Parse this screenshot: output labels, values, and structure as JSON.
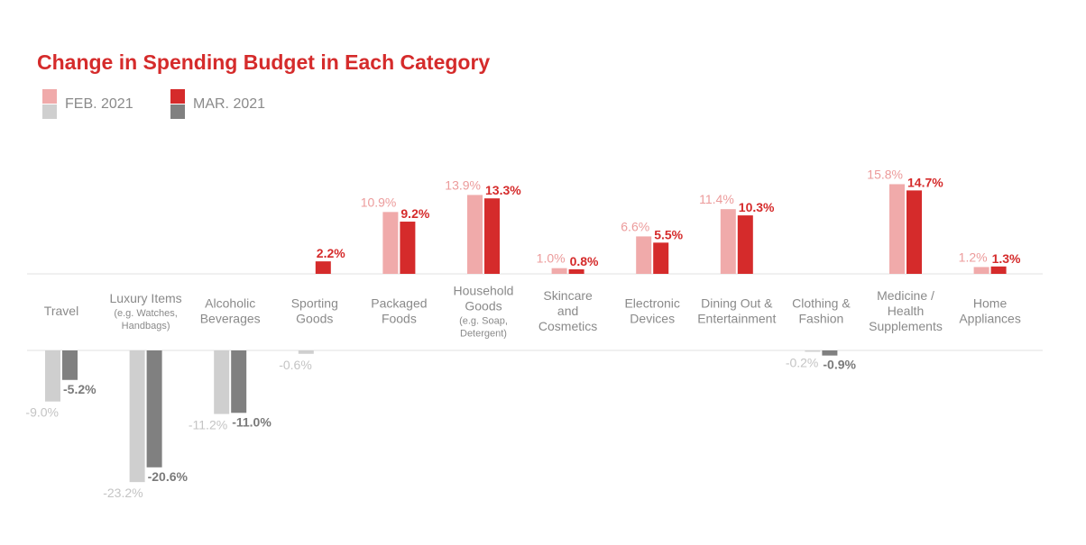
{
  "chart_data": {
    "type": "bar",
    "title": "Change in Spending Budget in Each Category",
    "categories": [
      {
        "lines": [
          "Travel"
        ],
        "sub": []
      },
      {
        "lines": [
          "Luxury Items"
        ],
        "sub": [
          "(e.g. Watches,",
          "Handbags)"
        ]
      },
      {
        "lines": [
          "Alcoholic",
          "Beverages"
        ],
        "sub": []
      },
      {
        "lines": [
          "Sporting",
          "Goods"
        ],
        "sub": []
      },
      {
        "lines": [
          "Packaged",
          "Foods"
        ],
        "sub": []
      },
      {
        "lines": [
          "Household",
          "Goods"
        ],
        "sub": [
          "(e.g. Soap,",
          "Detergent)"
        ]
      },
      {
        "lines": [
          "Skincare",
          "and",
          "Cosmetics"
        ],
        "sub": []
      },
      {
        "lines": [
          "Electronic",
          "Devices"
        ],
        "sub": []
      },
      {
        "lines": [
          "Dining Out &",
          "Entertainment"
        ],
        "sub": []
      },
      {
        "lines": [
          "Clothing &",
          "Fashion"
        ],
        "sub": []
      },
      {
        "lines": [
          "Medicine /",
          "Health",
          "Supplements"
        ],
        "sub": []
      },
      {
        "lines": [
          "Home",
          "Appliances"
        ],
        "sub": []
      }
    ],
    "series": [
      {
        "name": "FEB. 2021",
        "values": [
          -9.0,
          -23.2,
          -11.2,
          -0.6,
          10.9,
          13.9,
          1.0,
          6.6,
          11.4,
          -0.2,
          15.8,
          1.2
        ],
        "labels": [
          "-9.0%",
          "-23.2%",
          "-11.2%",
          "-0.6%",
          "10.9%",
          "13.9%",
          "1.0%",
          "6.6%",
          "11.4%",
          "-0.2%",
          "15.8%",
          "1.2%"
        ]
      },
      {
        "name": "MAR. 2021",
        "values": [
          -5.2,
          -20.6,
          -11.0,
          2.2,
          9.2,
          13.3,
          0.8,
          5.5,
          10.3,
          -0.9,
          14.7,
          1.3
        ],
        "labels": [
          "-5.2%",
          "-20.6%",
          "-11.0%",
          "2.2%",
          "9.2%",
          "13.3%",
          "0.8%",
          "5.5%",
          "10.3%",
          "-0.9%",
          "14.7%",
          "1.3%"
        ]
      }
    ],
    "colors": {
      "feb_positive": "#f0aaaa",
      "feb_negative": "#cfcfcf",
      "mar_positive": "#d52b2b",
      "mar_negative": "#808080",
      "feb_label_positive": "#ec9b9b",
      "feb_label_negative": "#c4c4c4",
      "mar_label_positive": "#d52b2b",
      "mar_label_negative": "#7a7a7a",
      "category_text": "#8a8a8a",
      "axis_line": "#e2e2e2",
      "title": "#d52b2b"
    },
    "legend": [
      {
        "label": "FEB. 2021",
        "color_top": "#f0aaaa",
        "color_bottom": "#cfcfcf"
      },
      {
        "label": "MAR. 2021",
        "color_top": "#d52b2b",
        "color_bottom": "#808080"
      }
    ],
    "legend_position": "top-left",
    "grid": false
  }
}
